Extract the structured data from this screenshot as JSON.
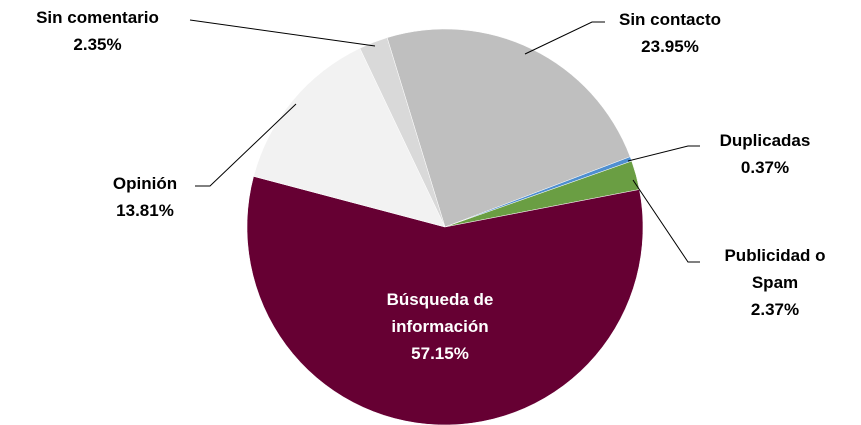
{
  "chart_data": {
    "type": "pie",
    "categories": [
      "Sin contacto",
      "Duplicadas",
      "Publicidad o Spam",
      "Búsqueda de información",
      "Opinión",
      "Sin comentario"
    ],
    "values": [
      23.95,
      0.37,
      2.37,
      57.15,
      13.81,
      2.35
    ],
    "value_labels": [
      "23.95%",
      "0.37%",
      "2.37%",
      "57.15%",
      "13.81%",
      "2.35%"
    ],
    "colors": [
      "#bfbfbf",
      "#4f8fd0",
      "#6a9e43",
      "#660033",
      "#f2f2f2",
      "#d9d9d9"
    ]
  }
}
